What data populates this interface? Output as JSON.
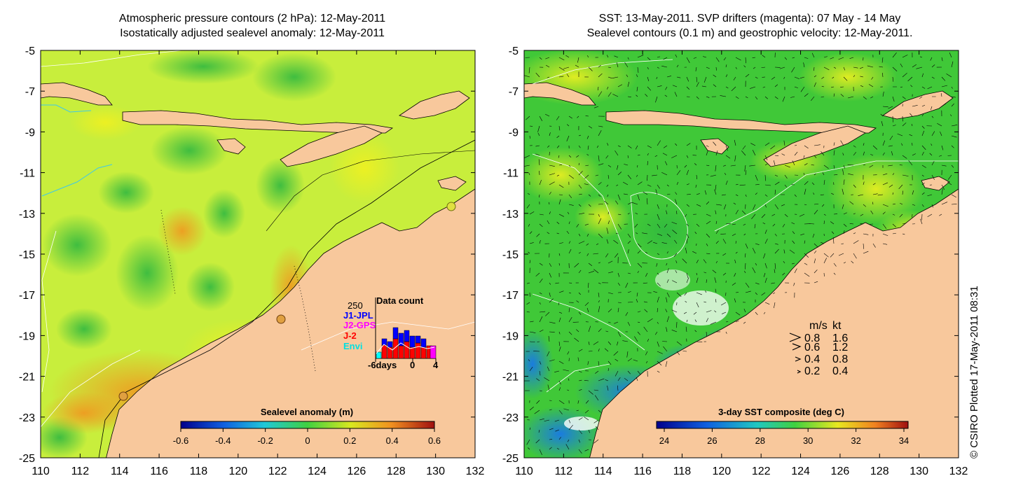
{
  "left_panel": {
    "title_line1": "Atmospheric pressure contours (2 hPa): 12-May-2011",
    "title_line2": "Isostatically adjusted sealevel anomaly: 12-May-2011",
    "colorbar_title": "Sealevel anomaly (m)",
    "colorbar_ticks": [
      "-0.6",
      "-0.4",
      "-0.2",
      "0",
      "0.2",
      "0.4",
      "0.6"
    ],
    "inset": {
      "title": "Data count",
      "max_label": "250",
      "legend": [
        {
          "label": "J1-JPL",
          "color": "#0000ff"
        },
        {
          "label": "J2-GPS",
          "color": "#ff00ff"
        },
        {
          "label": "J-2",
          "color": "#ff0000"
        },
        {
          "label": "Envi",
          "color": "#00ffff"
        }
      ],
      "x_labels": [
        "-6days",
        "0",
        "4"
      ]
    }
  },
  "right_panel": {
    "title_line1": "SST: 13-May-2011. SVP drifters (magenta): 07 May - 14 May",
    "title_line2": "Sealevel contours (0.1 m) and geostrophic velocity: 12-May-2011.",
    "colorbar_title": "3-day SST composite (deg C)",
    "colorbar_ticks": [
      "24",
      "26",
      "28",
      "30",
      "32",
      "34"
    ],
    "velocity_legend": {
      "header_ms": "m/s",
      "header_kt": "kt",
      "rows": [
        {
          "ms": "0.8",
          "kt": "1.6"
        },
        {
          "ms": "0.6",
          "kt": "1.2"
        },
        {
          "ms": "0.4",
          "kt": "0.8"
        },
        {
          "ms": "0.2",
          "kt": "0.4"
        }
      ]
    }
  },
  "axes": {
    "x_ticks": [
      "110",
      "112",
      "114",
      "116",
      "118",
      "120",
      "122",
      "124",
      "126",
      "128",
      "130",
      "132"
    ],
    "y_ticks": [
      "-5",
      "-7",
      "-9",
      "-11",
      "-13",
      "-15",
      "-17",
      "-19",
      "-21",
      "-23",
      "-25"
    ]
  },
  "credit": "© CSIRO Plotted 17-May-2011 08:31",
  "colors": {
    "land": "#f8c89c",
    "sea_anomaly_bg": "#c8ee3c",
    "sst_bg": "#40c838"
  }
}
